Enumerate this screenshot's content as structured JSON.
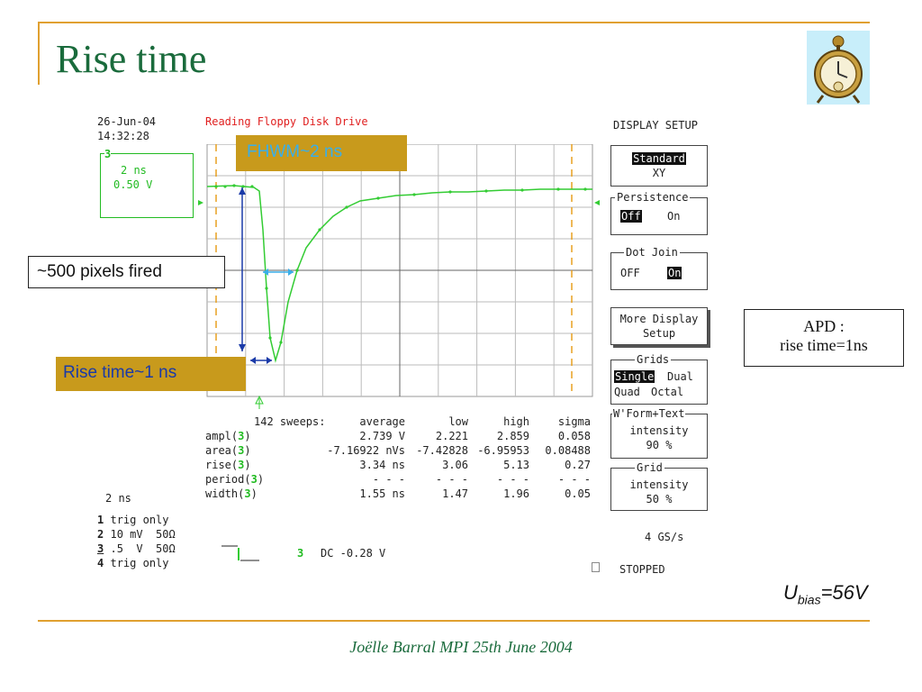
{
  "slide": {
    "title": "Rise time",
    "footer": "Joëlle Barral MPI 25th June 2004",
    "apd_line1": "APD :",
    "apd_line2": "rise time=1ns",
    "ubias_u": "U",
    "ubias_sub": "bias",
    "ubias_value": "=56V",
    "colors": {
      "title": "#1a6b3c",
      "rule": "#e0a030",
      "callout_bg": "#c89a1c"
    }
  },
  "scope": {
    "date": "26-Jun-04",
    "time": "14:32:28",
    "status_top": "Reading Floppy Disk Drive",
    "trace_box": {
      "channel": "3",
      "timebase": "2 ns",
      "volts": "0.50 V"
    },
    "timebase_left": "2 ns",
    "channels": [
      {
        "num": "1",
        "text": "trig only"
      },
      {
        "num": "2",
        "text": "10 mV  50Ω"
      },
      {
        "num": "3",
        "text": ".5  V  50Ω"
      },
      {
        "num": "4",
        "text": "trig only"
      }
    ],
    "coupling_num": "3",
    "coupling_text": "DC -0.28 V",
    "sample_rate": "4 GS/s",
    "acq_state": "STOPPED",
    "stats": {
      "sweeps_label": "142 sweeps:",
      "headers": [
        "average",
        "low",
        "high",
        "sigma"
      ],
      "rows": [
        {
          "name": "ampl(",
          "ch": "3",
          "close": ")",
          "values": [
            "2.739 V",
            "2.221",
            "2.859",
            "0.058"
          ]
        },
        {
          "name": "area(",
          "ch": "3",
          "close": ")",
          "values": [
            "-7.16922 nVs",
            "-7.42828",
            "-6.95953",
            "0.08488"
          ]
        },
        {
          "name": "rise(",
          "ch": "3",
          "close": ")",
          "values": [
            "3.34 ns",
            "3.06",
            "5.13",
            "0.27"
          ]
        },
        {
          "name": "period(",
          "ch": "3",
          "close": ")",
          "values": [
            "- - -",
            "- - -",
            "- - -",
            "- - -"
          ]
        },
        {
          "name": "width(",
          "ch": "3",
          "close": ")",
          "values": [
            "1.55 ns",
            "1.47",
            "1.96",
            "0.05"
          ]
        }
      ]
    },
    "menu": {
      "title": "DISPLAY SETUP",
      "standard": "Standard",
      "xy": "XY",
      "persistence": "Persistence",
      "persist_off": "Off",
      "persist_on": "On",
      "dot_join": "Dot Join",
      "dot_off": "OFF",
      "dot_on": "On",
      "more_display_1": "More Display",
      "more_display_2": "Setup",
      "grids": "Grids",
      "grid_single": "Single",
      "grid_dual": "Dual",
      "grid_quad": "Quad",
      "grid_octal": "Octal",
      "wform_title": "W'Form+Text",
      "wform_label": "intensity",
      "wform_value": "90 %",
      "grid_int_title": "Grid",
      "grid_int_label": "intensity",
      "grid_int_value": "50 %"
    }
  },
  "callouts": {
    "fwhm": "FHWM~2 ns",
    "pixels": "~500 pixels fired",
    "rise": "Rise time~1 ns"
  }
}
